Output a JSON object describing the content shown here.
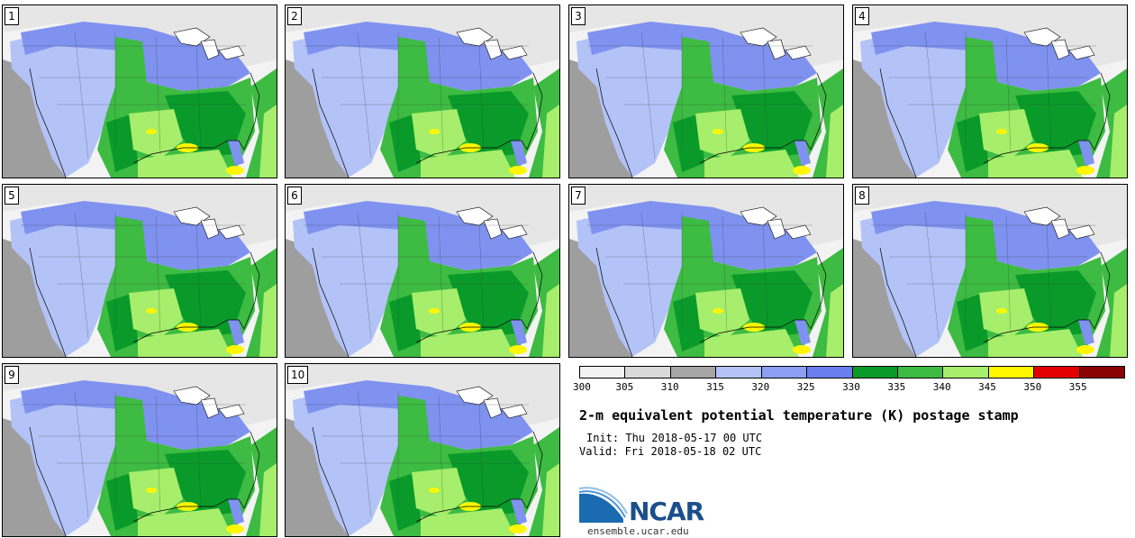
{
  "panels": [
    "1",
    "2",
    "3",
    "4",
    "5",
    "6",
    "7",
    "8",
    "9",
    "10"
  ],
  "colorbar": {
    "ticks": [
      "300",
      "305",
      "310",
      "315",
      "320",
      "325",
      "330",
      "335",
      "340",
      "345",
      "350",
      "355"
    ],
    "colors": [
      "#f2f2f2",
      "#d9d9d9",
      "#a6a6a6",
      "#b3c3f7",
      "#8c9ff2",
      "#6b7ef0",
      "#0a9a2a",
      "#3dbb42",
      "#a6ee6b",
      "#fff700",
      "#e30000",
      "#8b0000"
    ]
  },
  "title": "2-m equivalent potential temperature (K) postage stamp",
  "init": "Init: Thu 2018-05-17 00 UTC",
  "valid": "Valid: Fri 2018-05-18 02 UTC",
  "logo": {
    "text": "NCAR",
    "site": "ensemble.ucar.edu"
  }
}
